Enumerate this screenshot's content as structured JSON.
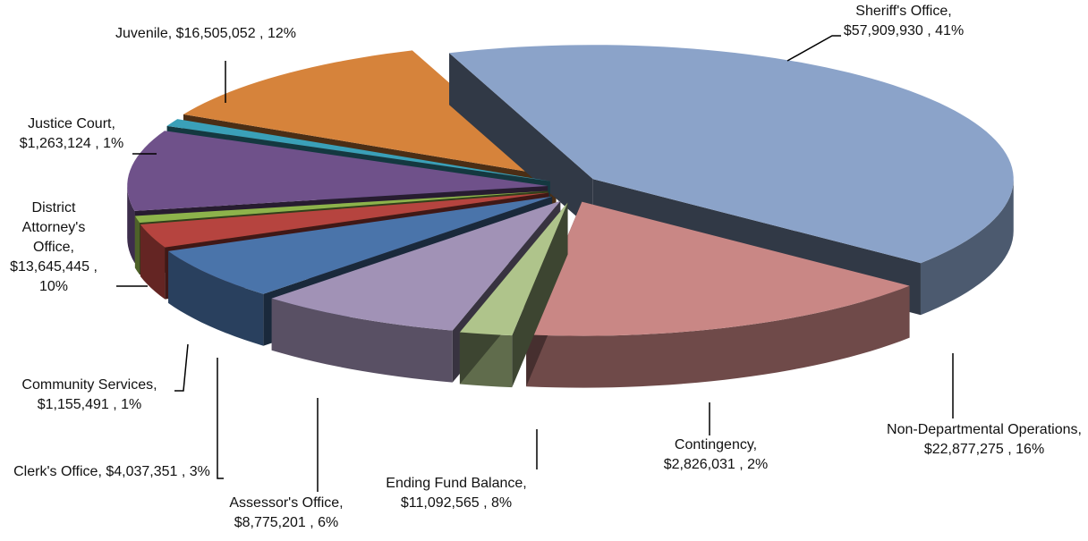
{
  "chart_data": {
    "type": "pie",
    "categories": [
      "Sheriff's Office,",
      "Non-Departmental Operations,",
      "Contingency,",
      "Ending Fund Balance,",
      "Assessor's Office,",
      "Clerk's Office,",
      "Community Services,",
      "District Attorney's Office,",
      "Justice Court,",
      "Juvenile,"
    ],
    "values": [
      57909930,
      22877275,
      2826031,
      11092565,
      8775201,
      4037351,
      1155491,
      13645445,
      1263124,
      16505052
    ],
    "value_labels": [
      "$57,909,930 ,",
      "$22,877,275 ,",
      "$2,826,031 ,",
      "$11,092,565 ,",
      "$8,775,201 ,",
      "$4,037,351 ,",
      "$1,155,491 ,",
      "$13,645,445 ,",
      "$1,263,124 ,",
      "$16,505,052 ,"
    ],
    "percents": [
      41,
      16,
      2,
      8,
      6,
      3,
      1,
      10,
      1,
      12
    ],
    "percent_labels": [
      "41%",
      "16%",
      "2%",
      "8%",
      "6%",
      "3%",
      "1%",
      "10%",
      "1%",
      "12%"
    ],
    "colors": [
      "#8ba3c9",
      "#c98785",
      "#afc48b",
      "#a192b6",
      "#4a74aa",
      "#b6443f",
      "#8db34b",
      "#6f518a",
      "#3aa0b8",
      "#d6833b"
    ]
  }
}
